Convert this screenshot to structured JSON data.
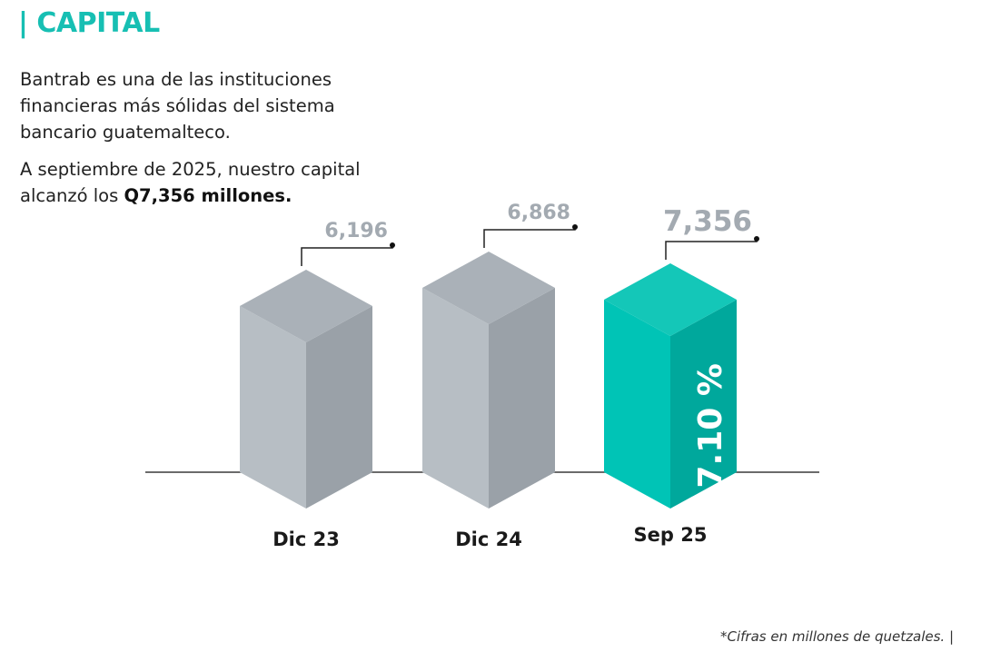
{
  "header": {
    "title": "| CAPITAL"
  },
  "intro": {
    "line1": "Bantrab es una de las instituciones financieras más sólidas del sistema bancario guatemalteco.",
    "line2_prefix": "A septiembre de 2025, nuestro capital alcanzó los ",
    "line2_bold": "Q7,356 millones."
  },
  "footnote": "*Cifras en millones de quetzales.  |",
  "colors": {
    "accent": "#17bfb3",
    "bar_gray_top": "#aab1b8",
    "bar_gray_front": "#b7bec4",
    "bar_gray_side": "#9aa1a8",
    "bar_teal_top": "#14c7b8",
    "bar_teal_front": "#00c4b6",
    "bar_teal_side": "#00a89c",
    "value_label": "#a3aab1"
  },
  "chart_data": {
    "type": "bar",
    "categories": [
      "Dic 23",
      "Dic 24",
      "Sep 25"
    ],
    "values": [
      6196,
      6868,
      7356
    ],
    "value_labels": [
      "6,196",
      "6,868",
      "7,356"
    ],
    "highlight_index": 2,
    "highlight_annotation": "7.10 %",
    "title": "",
    "xlabel": "",
    "ylabel": ""
  }
}
